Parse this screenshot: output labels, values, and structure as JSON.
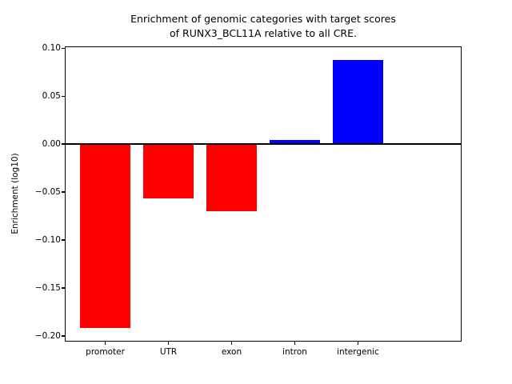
{
  "chart_data": {
    "type": "bar",
    "title_line1": "Enrichment of genomic categories with target scores",
    "title_line2": "of RUNX3_BCL11A relative to all CRE.",
    "ylabel": "Enrichment (log10)",
    "xlabel": "",
    "categories": [
      "promoter",
      "UTR",
      "exon",
      "intron",
      "intergenic"
    ],
    "values": [
      -0.192,
      -0.057,
      -0.07,
      0.004,
      0.088
    ],
    "bar_colors": [
      "#ff0000",
      "#ff0000",
      "#ff0000",
      "#0000ff",
      "#0000ff"
    ],
    "positive_color": "#0000ff",
    "negative_color": "#ff0000",
    "axis_color": "#000000",
    "background_color": "#ffffff",
    "yticks": [
      0.1,
      0.05,
      0.0,
      -0.05,
      -0.1,
      -0.15,
      -0.2
    ],
    "ytick_labels": [
      "0.10",
      "0.05",
      "0.00",
      "−0.05",
      "−0.10",
      "−0.15",
      "−0.20"
    ],
    "ylim": [
      -0.206,
      0.102
    ],
    "bar_width_fraction": 0.8,
    "x_margin_units": 0.64,
    "zero_line": true,
    "grid": false,
    "legend": null
  }
}
